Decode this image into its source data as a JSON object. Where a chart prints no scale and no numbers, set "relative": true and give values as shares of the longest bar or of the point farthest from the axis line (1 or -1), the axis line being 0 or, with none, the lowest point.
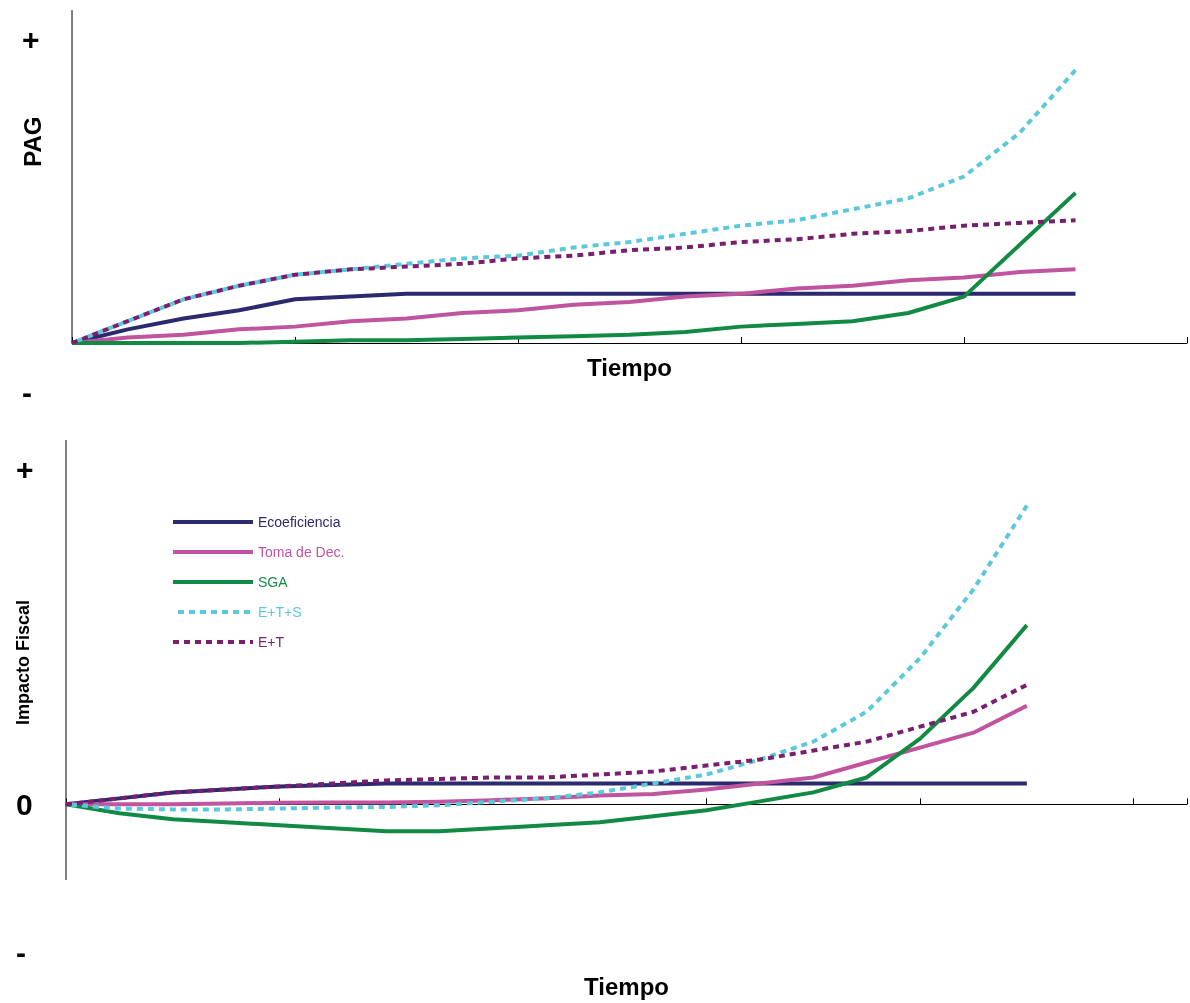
{
  "chart_data": [
    {
      "type": "line",
      "relative": true,
      "ylabel": "PAG",
      "xlabel": "Tiempo",
      "annotations": [
        "+",
        "-"
      ],
      "legend": false,
      "grid": false,
      "marker": "none",
      "categories": [
        null,
        null,
        null,
        null,
        null,
        null,
        null,
        null,
        null,
        null,
        null,
        null,
        null,
        null,
        null,
        null,
        null,
        null,
        null,
        null,
        null
      ],
      "series": [
        {
          "color": "#2b2a6e",
          "line_style": "solid",
          "values": [
            0,
            0.05,
            0.09,
            0.12,
            0.16,
            0.17,
            0.18,
            0.18,
            0.18,
            0.18,
            0.18,
            0.18,
            0.18,
            0.18,
            0.18,
            0.18,
            0.18,
            0.18,
            0.18,
            null,
            null
          ]
        },
        {
          "color": "#c0549e",
          "line_style": "solid",
          "values": [
            0,
            0.02,
            0.03,
            0.05,
            0.06,
            0.08,
            0.09,
            0.11,
            0.12,
            0.14,
            0.15,
            0.17,
            0.18,
            0.2,
            0.21,
            0.23,
            0.24,
            0.26,
            0.27,
            null,
            null
          ]
        },
        {
          "color": "#138a44",
          "line_style": "solid",
          "values": [
            0,
            0,
            0,
            0,
            0.005,
            0.01,
            0.01,
            0.015,
            0.02,
            0.025,
            0.03,
            0.04,
            0.06,
            0.07,
            0.08,
            0.11,
            0.17,
            0.36,
            0.55,
            null,
            null
          ]
        },
        {
          "color": "#5bc8dc",
          "line_style": "dashed",
          "values": [
            0,
            0.08,
            0.16,
            0.21,
            0.25,
            0.27,
            0.29,
            0.31,
            0.32,
            0.35,
            0.37,
            0.4,
            0.43,
            0.45,
            0.49,
            0.53,
            0.61,
            0.77,
            1,
            null,
            null
          ]
        },
        {
          "color": "#7a1e6e",
          "line_style": "dashed",
          "values": [
            0,
            0.08,
            0.16,
            0.21,
            0.25,
            0.27,
            0.28,
            0.29,
            0.31,
            0.32,
            0.34,
            0.35,
            0.37,
            0.38,
            0.4,
            0.41,
            0.43,
            0.44,
            0.45,
            null,
            null
          ]
        }
      ]
    },
    {
      "type": "line",
      "relative": true,
      "ylabel": "Impacto Fiscal",
      "xlabel": "Tiempo",
      "annotations": [
        "+",
        "0",
        "-"
      ],
      "legend": "top left",
      "grid": false,
      "marker": "none",
      "categories": [
        null,
        null,
        null,
        null,
        null,
        null,
        null,
        null,
        null,
        null,
        null,
        null,
        null,
        null,
        null,
        null,
        null,
        null,
        null,
        null,
        null,
        null
      ],
      "series": [
        {
          "name": "Ecoeficiencia",
          "color": "#2b2a6e",
          "line_style": "solid",
          "values": [
            0,
            0.02,
            0.04,
            0.05,
            0.06,
            0.065,
            0.07,
            0.07,
            0.07,
            0.07,
            0.07,
            0.07,
            0.07,
            0.07,
            0.07,
            0.07,
            0.07,
            0.07,
            0.07,
            null,
            null,
            null
          ]
        },
        {
          "name": "Toma de Dec.",
          "color": "#c0549e",
          "line_style": "solid",
          "values": [
            0,
            0,
            0,
            0.003,
            0.005,
            0.006,
            0.006,
            0.009,
            0.014,
            0.02,
            0.03,
            0.035,
            0.05,
            0.07,
            0.09,
            0.14,
            0.19,
            0.24,
            0.33,
            null,
            null,
            null
          ]
        },
        {
          "name": "SGA",
          "color": "#138a44",
          "line_style": "solid",
          "values": [
            0,
            -0.03,
            -0.05,
            -0.06,
            -0.07,
            -0.08,
            -0.09,
            -0.09,
            -0.08,
            -0.07,
            -0.06,
            -0.04,
            -0.02,
            0.01,
            0.04,
            0.09,
            0.22,
            0.39,
            0.6,
            null,
            null,
            null
          ]
        },
        {
          "name": "E+T+S",
          "color": "#5bc8dc",
          "line_style": "dashed",
          "values": [
            0,
            -0.014,
            -0.017,
            -0.017,
            -0.014,
            -0.011,
            -0.009,
            -0.003,
            0.009,
            0.02,
            0.04,
            0.07,
            0.1,
            0.15,
            0.21,
            0.31,
            0.49,
            0.72,
            1,
            null,
            null,
            null
          ]
        },
        {
          "name": "E+T",
          "color": "#7a1e6e",
          "line_style": "dashed",
          "values": [
            0,
            0.02,
            0.04,
            0.05,
            0.06,
            0.07,
            0.08,
            0.085,
            0.09,
            0.09,
            0.1,
            0.11,
            0.13,
            0.15,
            0.18,
            0.21,
            0.26,
            0.31,
            0.4,
            null,
            null,
            null
          ]
        }
      ]
    }
  ]
}
